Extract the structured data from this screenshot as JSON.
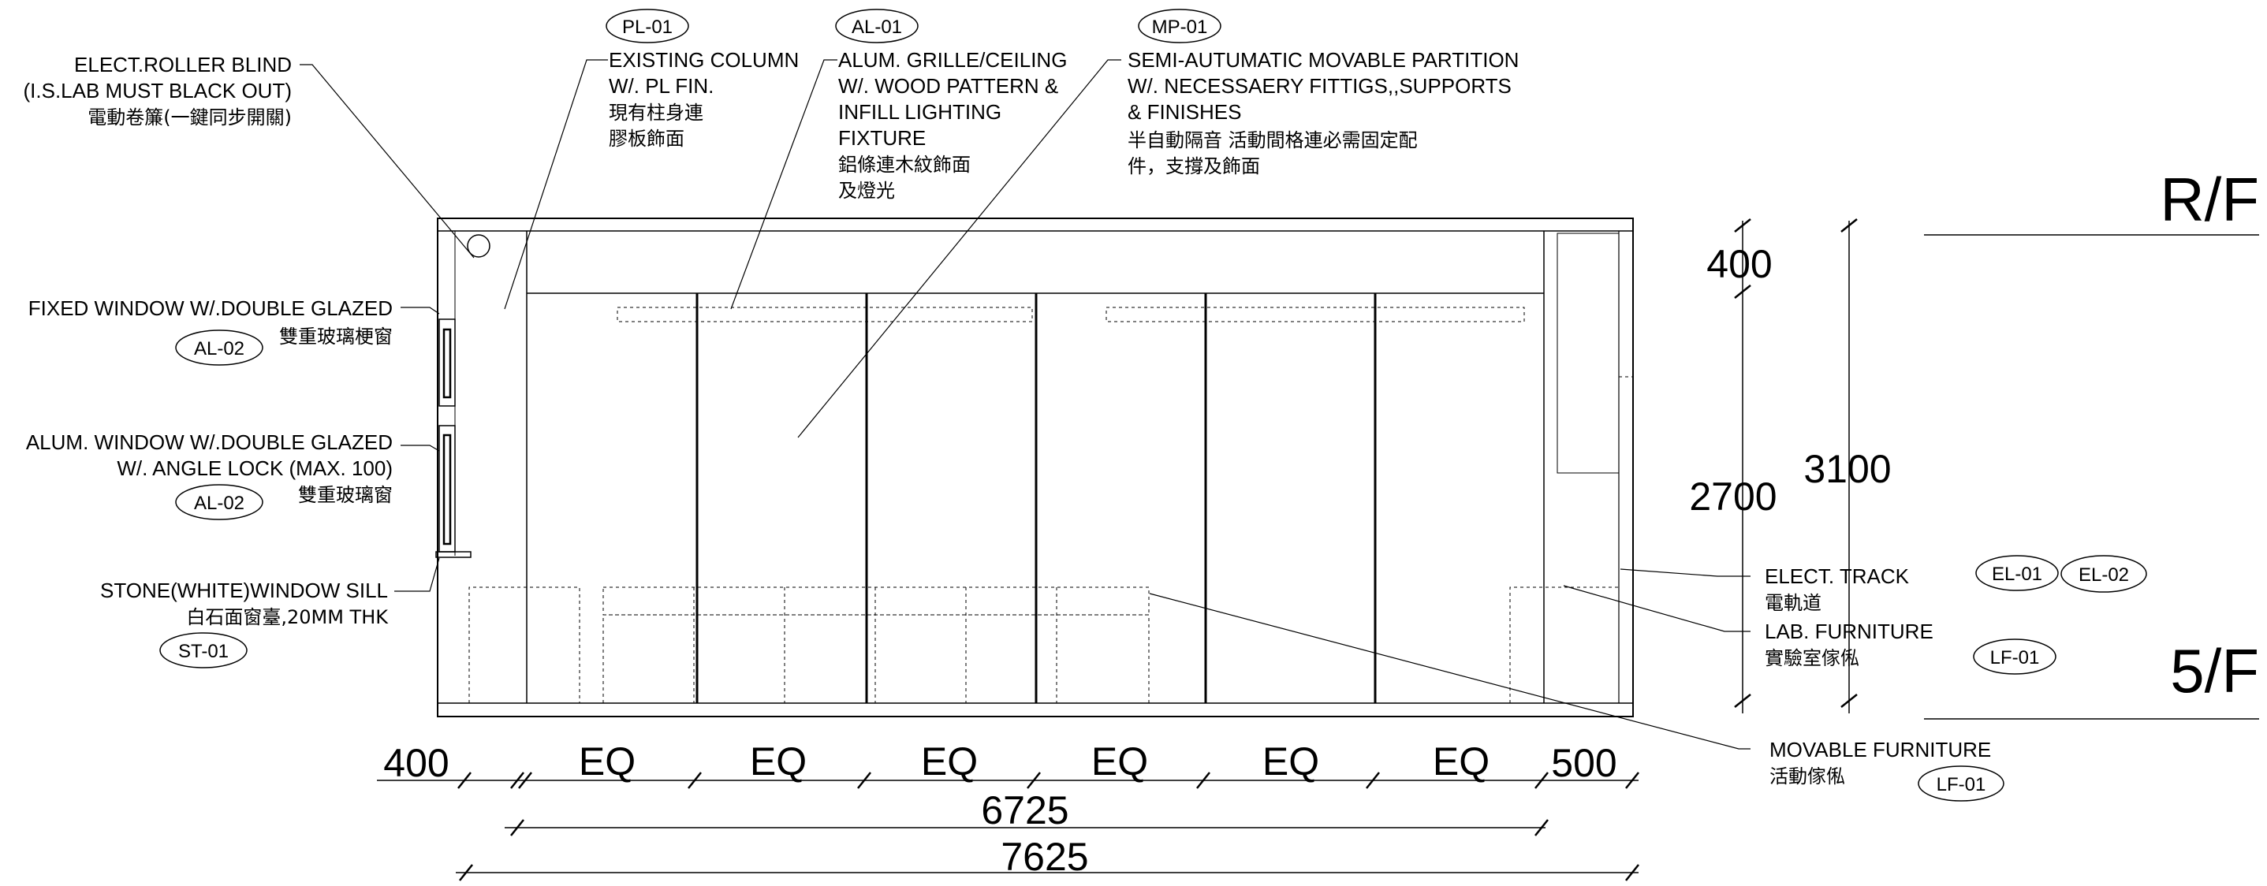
{
  "annotations": {
    "blind_en1": "ELECT.ROLLER BLIND",
    "blind_en2": "(I.S.LAB MUST BLACK OUT)",
    "blind_cn": "電動卷簾(一鍵同步開關)",
    "fixed_win_en": "FIXED WINDOW W/.DOUBLE GLAZED",
    "fixed_win_cn": "雙重玻璃梗窗",
    "alum_win_en1": "ALUM.  WINDOW W/.DOUBLE GLAZED",
    "alum_win_en2": "W/. ANGLE LOCK (MAX. 100)",
    "alum_win_cn": "雙重玻璃窗",
    "sill_en": "STONE(WHITE)WINDOW SILL",
    "sill_cn": "白石面窗臺,20MM THK",
    "column_en1": "EXISTING COLUMN",
    "column_en2": "W/. PL FIN.",
    "column_cn1": "現有柱身連",
    "column_cn2": "膠板飾面",
    "grille_en1": "ALUM. GRILLE/CEILING",
    "grille_en2": "W/. WOOD PATTERN &",
    "grille_en3": "INFILL LIGHTING",
    "grille_en4": "FIXTURE",
    "grille_cn1": "鋁條連木紋飾面",
    "grille_cn2": "及燈光",
    "partition_en1": "SEMI-AUTUMATIC MOVABLE PARTITION",
    "partition_en2": "W/. NECESSAERY FITTIGS,,SUPPORTS",
    "partition_en3": "& FINISHES",
    "partition_cn1": "半自動隔音 活動間格連必需固定配",
    "partition_cn2": "件，支撐及飾面",
    "track_en": "ELECT. TRACK",
    "track_cn": "電軌道",
    "labfurn_en": "LAB. FURNITURE",
    "labfurn_cn": "實驗室傢俬",
    "movfurn_en": "MOVABLE FURNITURE",
    "movfurn_cn": "活動傢俬"
  },
  "tags": {
    "pl01": "PL-01",
    "al01": "AL-01",
    "mp01": "MP-01",
    "al02a": "AL-02",
    "al02b": "AL-02",
    "st01": "ST-01",
    "el01": "EL-01",
    "el02": "EL-02",
    "lf01a": "LF-01",
    "lf01b": "LF-01"
  },
  "dimensions": {
    "left": "400",
    "eq": [
      "EQ",
      "EQ",
      "EQ",
      "EQ",
      "EQ",
      "EQ"
    ],
    "right": "500",
    "partition_span": "6725",
    "overall": "7625",
    "ceiling_zone": "400",
    "ceiling_height": "2700",
    "floor_to_floor": "3100"
  },
  "levels": {
    "upper": "R/F",
    "lower": "5/F"
  }
}
